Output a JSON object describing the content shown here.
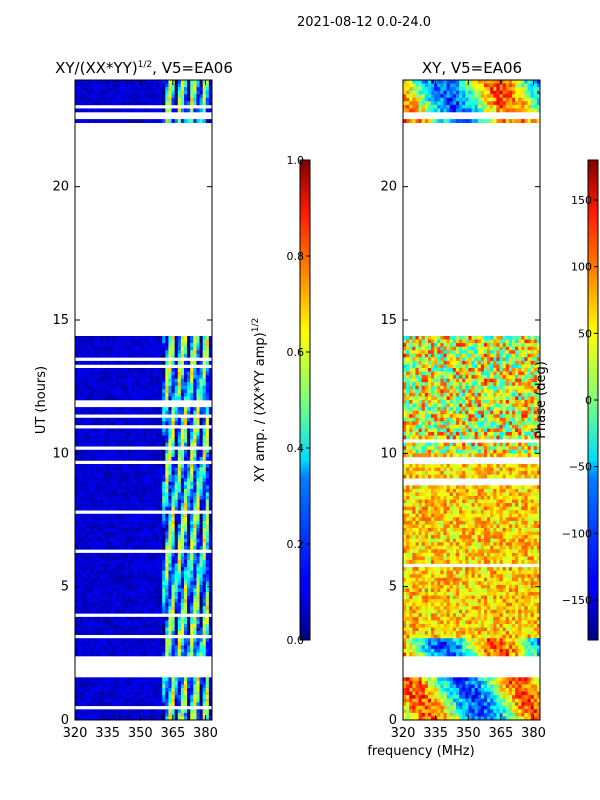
{
  "suptitle": "2021-08-12 0.0-24.0",
  "xlabel_shared": "frequency (MHz)",
  "chart_data": [
    {
      "type": "heatmap",
      "title_main": "XY/(XX*YY)",
      "title_sup": "1/2",
      "title_tail": ", V5=EA06",
      "ylabel": "UT (hours)",
      "xlim": [
        320,
        383
      ],
      "ylim": [
        0,
        24
      ],
      "xticks": [
        320,
        335,
        350,
        365,
        380
      ],
      "yticks": [
        0,
        5,
        10,
        15,
        20
      ],
      "data_gaps_hours": [
        [
          22.55,
          22.75
        ],
        [
          14.45,
          22.35
        ],
        [
          1.6,
          2.35
        ]
      ],
      "bright_band_mhz": [
        360,
        381
      ],
      "colorbar": {
        "label_main": "XY amp. / (XX*YY amp)",
        "label_sup": "1/2",
        "range": [
          0.0,
          1.0
        ],
        "ticks": [
          "0.0",
          "0.2",
          "0.4",
          "0.6",
          "0.8",
          "1.0"
        ],
        "cmap": "jet"
      }
    },
    {
      "type": "heatmap",
      "title": "XY, V5=EA06",
      "xlim": [
        320,
        383
      ],
      "ylim": [
        0,
        24
      ],
      "xticks": [
        320,
        335,
        350,
        365,
        380
      ],
      "yticks": [
        0,
        5,
        10,
        15,
        20
      ],
      "data_gaps_hours": [
        [
          22.55,
          22.75
        ],
        [
          14.45,
          22.35
        ],
        [
          1.6,
          2.35
        ]
      ],
      "colorbar": {
        "label": "Phase (deg)",
        "range": [
          -180,
          180
        ],
        "ticks": [
          "150",
          "100",
          "50",
          "0",
          "−50",
          "−100",
          "−150"
        ],
        "tick_values": [
          150,
          100,
          50,
          0,
          -50,
          -100,
          -150
        ],
        "cmap": "jet"
      }
    }
  ]
}
